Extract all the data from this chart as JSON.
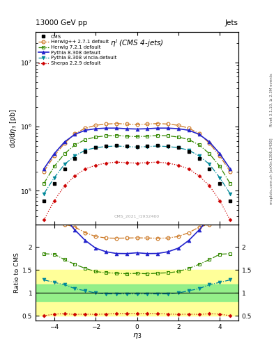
{
  "title_top": "13000 GeV pp",
  "title_right": "Jets",
  "plot_title": "$\\eta^j$ (CMS 4-jets)",
  "xlabel": "$\\eta_3$",
  "ylabel_main": "d$\\sigma$/d$\\eta_3$ [pb]",
  "ylabel_ratio": "Ratio to CMS",
  "watermark": "CMS_2021_I1932460",
  "right_label": "mcplots.cern.ch [arXiv:1306.3436]",
  "rivet_label": "Rivet 3.1.10, ≥ 2.3M events",
  "eta_values": [
    -4.5,
    -4.0,
    -3.5,
    -3.0,
    -2.5,
    -2.0,
    -1.5,
    -1.0,
    -0.5,
    0.0,
    0.5,
    1.0,
    1.5,
    2.0,
    2.5,
    3.0,
    3.5,
    4.0,
    4.5
  ],
  "cms_data": [
    70000.0,
    130000.0,
    220000.0,
    320000.0,
    410000.0,
    470000.0,
    500000.0,
    510000.0,
    500000.0,
    490000.0,
    500000.0,
    510000.0,
    500000.0,
    470000.0,
    410000.0,
    320000.0,
    220000.0,
    130000.0,
    70000.0
  ],
  "herwig_pp_data": [
    200000.0,
    350000.0,
    550000.0,
    780000.0,
    950000.0,
    1050000.0,
    1100000.0,
    1120000.0,
    1100000.0,
    1080000.0,
    1100000.0,
    1120000.0,
    1100000.0,
    1050000.0,
    950000.0,
    780000.0,
    550000.0,
    350000.0,
    200000.0
  ],
  "herwig72_data": [
    130000.0,
    240000.0,
    380000.0,
    520000.0,
    630000.0,
    690000.0,
    720000.0,
    730000.0,
    710000.0,
    700000.0,
    710000.0,
    730000.0,
    720000.0,
    690000.0,
    630000.0,
    520000.0,
    380000.0,
    240000.0,
    130000.0
  ],
  "pythia_data": [
    220000.0,
    380000.0,
    580000.0,
    760000.0,
    880000.0,
    930000.0,
    950000.0,
    950000.0,
    930000.0,
    920000.0,
    930000.0,
    950000.0,
    950000.0,
    930000.0,
    880000.0,
    760000.0,
    580000.0,
    380000.0,
    220000.0
  ],
  "vincia_data": [
    90000.0,
    160000.0,
    260000.0,
    350000.0,
    430000.0,
    470000.0,
    490000.0,
    500000.0,
    490000.0,
    480000.0,
    490000.0,
    500000.0,
    490000.0,
    470000.0,
    430000.0,
    350000.0,
    260000.0,
    160000.0,
    90000.0
  ],
  "sherpa_data": [
    35000.0,
    70000.0,
    120000.0,
    170000.0,
    220000.0,
    250000.0,
    270000.0,
    280000.0,
    275000.0,
    270000.0,
    275000.0,
    280000.0,
    270000.0,
    250000.0,
    220000.0,
    170000.0,
    120000.0,
    70000.0,
    35000.0
  ],
  "colors": {
    "cms": "#000000",
    "herwig_pp": "#cc7722",
    "herwig72": "#338800",
    "pythia": "#2222cc",
    "vincia": "#008899",
    "sherpa": "#cc0000"
  },
  "band_green": [
    0.82,
    1.18
  ],
  "band_yellow": [
    0.5,
    1.5
  ],
  "ylim_main": [
    30000.0,
    30000000.0
  ],
  "ylim_ratio": [
    0.4,
    2.5
  ],
  "xlim": [
    -4.9,
    4.9
  ]
}
